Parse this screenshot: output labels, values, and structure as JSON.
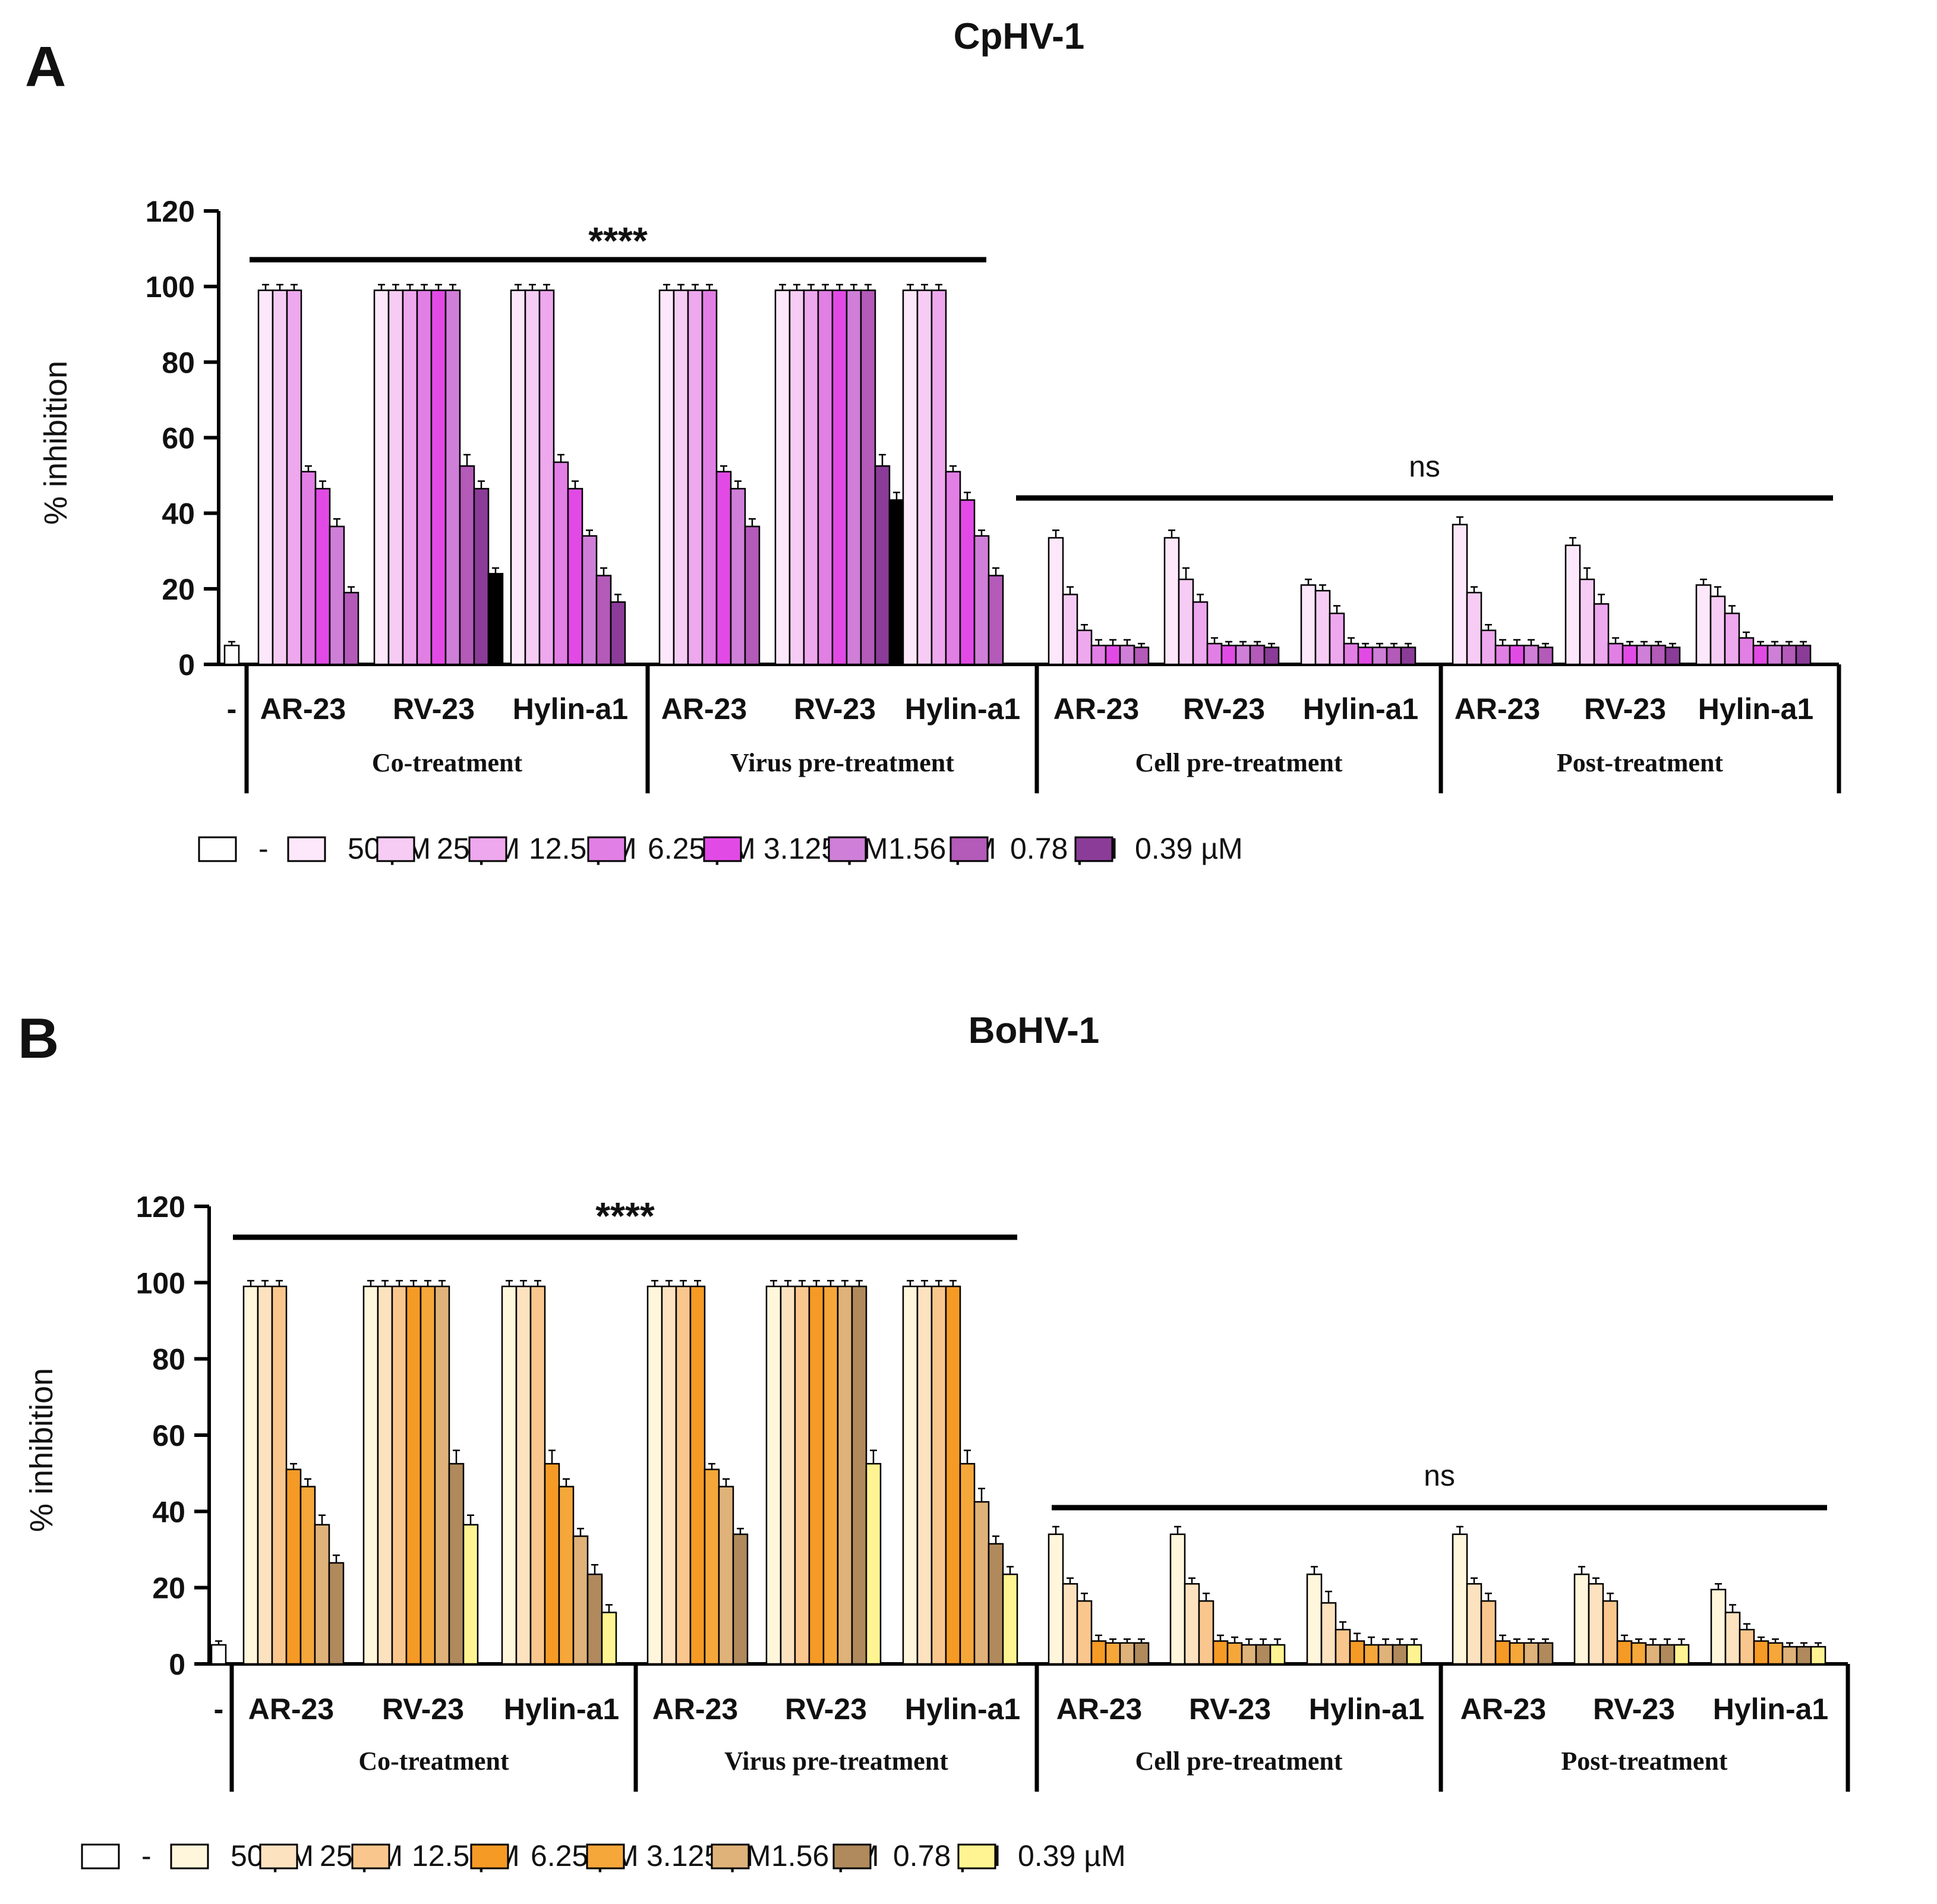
{
  "figure": {
    "panels": [
      {
        "id": "A",
        "letter": "A",
        "title": "CpHV-1",
        "colors": [
          "#ffffff",
          "#fde8fb",
          "#f6ccf4",
          "#eea8ee",
          "#e27fe5",
          "#e24ae6",
          "#cf7fd8",
          "#b45ab9",
          "#8b3c98"
        ]
      },
      {
        "id": "B",
        "letter": "B",
        "title": "BoHV-1",
        "colors": [
          "#ffffff",
          "#fff6dc",
          "#fde2c0",
          "#f9c78e",
          "#f59a25",
          "#f5a73a",
          "#dfb27a",
          "#b08a5c",
          "#fff491"
        ]
      }
    ],
    "legend_labels": [
      "-",
      "50 µM",
      "25 µM",
      "12.5 µM",
      "6.25 µM",
      "3.125 µM",
      "1.56 µM",
      "0.78 µM",
      "0.39 µM"
    ]
  },
  "chart_data": [
    {
      "type": "bar",
      "title": "CpHV-1",
      "ylabel": "% inhibition",
      "xlabel": "",
      "ylim": [
        0,
        120
      ],
      "yticks": [
        0,
        20,
        40,
        60,
        80,
        100,
        120
      ],
      "concentrations": [
        "-",
        "50 µM",
        "25 µM",
        "12.5 µM",
        "6.25 µM",
        "3.125 µM",
        "1.56 µM",
        "0.78 µM",
        "0.39 µM"
      ],
      "control": {
        "label": "-",
        "value": 5,
        "error": 1
      },
      "treatments": [
        {
          "name": "Co-treatment",
          "peptides": [
            {
              "name": "AR-23",
              "values": [
                99,
                99,
                99,
                51,
                46.5,
                36.5,
                19
              ],
              "errors": [
                1.5,
                1.5,
                1.5,
                1.5,
                2,
                2,
                1.5
              ]
            },
            {
              "name": "RV-23",
              "values": [
                99,
                99,
                99,
                99,
                99,
                99,
                52.5,
                46.5,
                24
              ],
              "errors": [
                1.5,
                1.5,
                1.5,
                1.5,
                1.5,
                1.5,
                3,
                2,
                1.5
              ]
            },
            {
              "name": "Hylin-a1",
              "values": [
                99,
                99,
                99,
                53.5,
                46.5,
                34,
                23.5,
                16.5
              ],
              "errors": [
                1.5,
                1.5,
                1.5,
                2,
                2,
                1.5,
                2,
                2
              ]
            }
          ]
        },
        {
          "name": "Virus pre-treatment",
          "peptides": [
            {
              "name": "AR-23",
              "values": [
                99,
                99,
                99,
                99,
                51,
                46.5,
                36.5
              ],
              "errors": [
                1.5,
                1.5,
                1.5,
                1.5,
                1.5,
                2,
                2
              ]
            },
            {
              "name": "RV-23",
              "values": [
                99,
                99,
                99,
                99,
                99,
                99,
                99,
                52.5,
                43.5
              ],
              "errors": [
                1.5,
                1.5,
                1.5,
                1.5,
                1.5,
                1.5,
                1.5,
                3,
                2
              ]
            },
            {
              "name": "Hylin-a1",
              "values": [
                99,
                99,
                99,
                51,
                43.5,
                34,
                23.5
              ],
              "errors": [
                1.5,
                1.5,
                1.5,
                1.5,
                2,
                1.5,
                2
              ]
            }
          ]
        },
        {
          "name": "Cell pre-treatment",
          "peptides": [
            {
              "name": "AR-23",
              "values": [
                33.5,
                18.5,
                9,
                5,
                5,
                5,
                4.5
              ],
              "errors": [
                2,
                2,
                1.5,
                1.5,
                1.5,
                1.5,
                1
              ]
            },
            {
              "name": "RV-23",
              "values": [
                33.5,
                22.5,
                16.5,
                5.5,
                5,
                5,
                5,
                4.5
              ],
              "errors": [
                2,
                3,
                2,
                1.5,
                1,
                1,
                1,
                1
              ]
            },
            {
              "name": "Hylin-a1",
              "values": [
                21,
                19.5,
                13.5,
                5.5,
                4.5,
                4.5,
                4.5,
                4.5
              ],
              "errors": [
                1.5,
                1.5,
                2,
                1.5,
                1,
                1,
                1,
                1
              ]
            }
          ]
        },
        {
          "name": "Post-treatment",
          "peptides": [
            {
              "name": "AR-23",
              "values": [
                37,
                19,
                9,
                5,
                5,
                5,
                4.5
              ],
              "errors": [
                2,
                1.5,
                1.5,
                1.5,
                1.5,
                1.5,
                1
              ]
            },
            {
              "name": "RV-23",
              "values": [
                31.5,
                22.5,
                16,
                5.5,
                5,
                5,
                5,
                4.5
              ],
              "errors": [
                2,
                3,
                2.5,
                1.5,
                1,
                1,
                1,
                1
              ]
            },
            {
              "name": "Hylin-a1",
              "values": [
                21,
                18,
                13.5,
                7,
                5,
                5,
                5,
                5
              ],
              "errors": [
                1.5,
                2.5,
                2,
                1.5,
                1,
                1,
                1,
                1
              ]
            }
          ]
        }
      ],
      "significance": [
        {
          "label": "****",
          "from_group": 0,
          "to_group": 1
        },
        {
          "label": "ns",
          "from_group": 2,
          "to_group": 3
        }
      ]
    },
    {
      "type": "bar",
      "title": "BoHV-1",
      "ylabel": "% inhibition",
      "xlabel": "",
      "ylim": [
        0,
        120
      ],
      "yticks": [
        0,
        20,
        40,
        60,
        80,
        100,
        120
      ],
      "concentrations": [
        "-",
        "50 µM",
        "25 µM",
        "12.5 µM",
        "6.25 µM",
        "3.125 µM",
        "1.56 µM",
        "0.78 µM",
        "0.39 µM"
      ],
      "control": {
        "label": "-",
        "value": 5,
        "error": 1
      },
      "treatments": [
        {
          "name": "Co-treatment",
          "peptides": [
            {
              "name": "AR-23",
              "values": [
                99,
                99,
                99,
                51,
                46.5,
                36.5,
                26.5
              ],
              "errors": [
                1.5,
                1.5,
                1.5,
                1.5,
                2,
                2.5,
                2
              ]
            },
            {
              "name": "RV-23",
              "values": [
                99,
                99,
                99,
                99,
                99,
                99,
                52.5,
                36.5
              ],
              "errors": [
                1.5,
                1.5,
                1.5,
                1.5,
                1.5,
                1.5,
                3.5,
                2.5
              ]
            },
            {
              "name": "Hylin-a1",
              "values": [
                99,
                99,
                99,
                52.5,
                46.5,
                33.5,
                23.5,
                13.5
              ],
              "errors": [
                1.5,
                1.5,
                1.5,
                3.5,
                2,
                2,
                2.5,
                2
              ]
            }
          ]
        },
        {
          "name": "Virus pre-treatment",
          "peptides": [
            {
              "name": "AR-23",
              "values": [
                99,
                99,
                99,
                99,
                51,
                46.5,
                34
              ],
              "errors": [
                1.5,
                1.5,
                1.5,
                1.5,
                1.5,
                2,
                1.5
              ]
            },
            {
              "name": "RV-23",
              "values": [
                99,
                99,
                99,
                99,
                99,
                99,
                99,
                52.5
              ],
              "errors": [
                1.5,
                1.5,
                1.5,
                1.5,
                1.5,
                1.5,
                1.5,
                3.5
              ]
            },
            {
              "name": "Hylin-a1",
              "values": [
                99,
                99,
                99,
                99,
                52.5,
                42.5,
                31.5,
                23.5
              ],
              "errors": [
                1.5,
                1.5,
                1.5,
                1.5,
                3.5,
                3.5,
                2,
                2
              ]
            }
          ]
        },
        {
          "name": "Cell pre-treatment",
          "peptides": [
            {
              "name": "AR-23",
              "values": [
                34,
                21,
                16.5,
                6,
                5.5,
                5.5,
                5.5
              ],
              "errors": [
                2,
                1.5,
                2,
                1.5,
                1,
                1,
                1
              ]
            },
            {
              "name": "RV-23",
              "values": [
                34,
                21,
                16.5,
                6,
                5.5,
                5,
                5,
                5
              ],
              "errors": [
                2,
                1.5,
                2,
                1.5,
                1.5,
                1.5,
                1.5,
                1.5
              ]
            },
            {
              "name": "Hylin-a1",
              "values": [
                23.5,
                16,
                9,
                6,
                5,
                5,
                5,
                5
              ],
              "errors": [
                2,
                3,
                2,
                2,
                2,
                1.5,
                1.5,
                1.5
              ]
            }
          ]
        },
        {
          "name": "Post-treatment",
          "peptides": [
            {
              "name": "AR-23",
              "values": [
                34,
                21,
                16.5,
                6,
                5.5,
                5.5,
                5.5
              ],
              "errors": [
                2,
                1.5,
                2,
                1.5,
                1,
                1,
                1
              ]
            },
            {
              "name": "RV-23",
              "values": [
                23.5,
                21,
                16.5,
                6,
                5.5,
                5,
                5,
                5
              ],
              "errors": [
                2,
                1.5,
                2,
                1.5,
                1,
                1.5,
                1.5,
                1.5
              ]
            },
            {
              "name": "Hylin-a1",
              "values": [
                19.5,
                13.5,
                9,
                6,
                5.5,
                4.5,
                4.5,
                4.5
              ],
              "errors": [
                1.5,
                2,
                1.5,
                1,
                1,
                1,
                1,
                1
              ]
            }
          ]
        }
      ],
      "significance": [
        {
          "label": "****",
          "from_group": 0,
          "to_group": 1
        },
        {
          "label": "ns",
          "from_group": 2,
          "to_group": 3
        }
      ]
    }
  ]
}
